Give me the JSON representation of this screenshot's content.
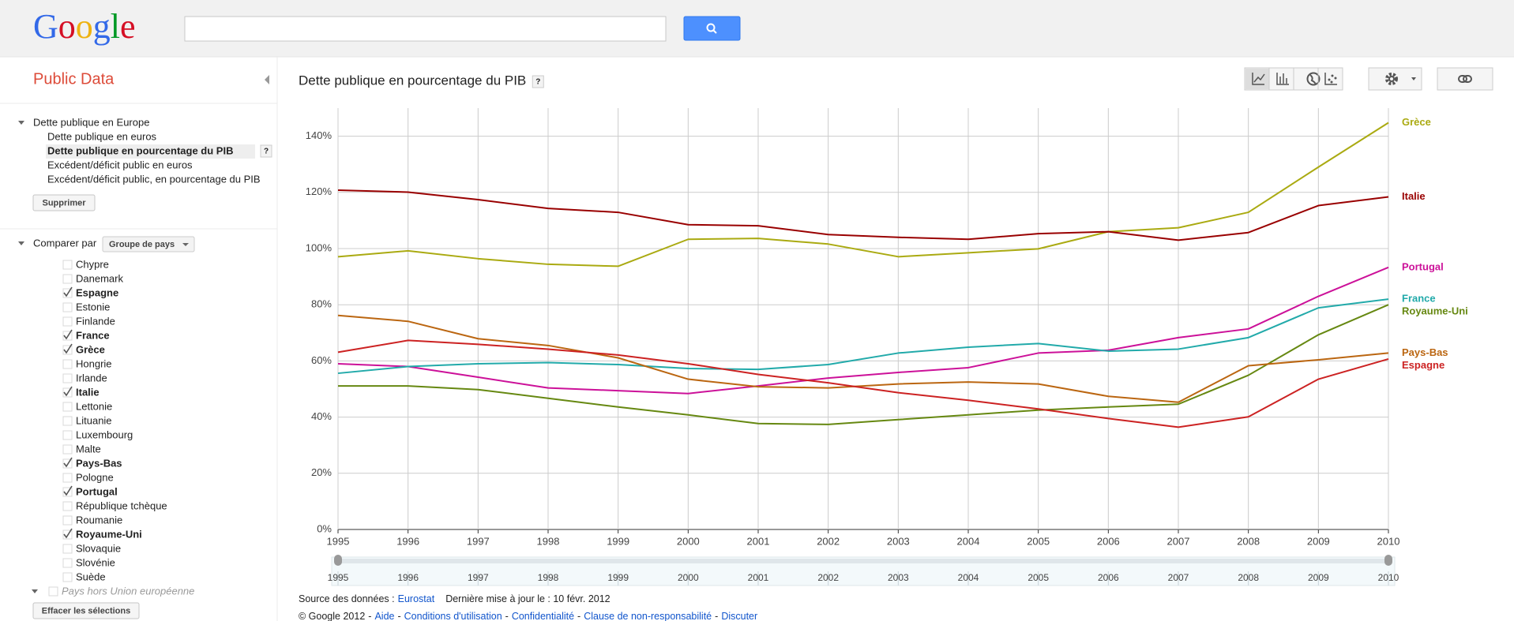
{
  "header": {
    "logo": [
      "G",
      "o",
      "o",
      "g",
      "l",
      "e"
    ]
  },
  "sidebar": {
    "title": "Public Data",
    "tree": {
      "label": "Dette publique en Europe",
      "items": [
        "Dette publique en euros",
        "Dette publique en pourcentage du PIB",
        "Excédent/déficit public en euros",
        "Excédent/déficit public, en pourcentage du PIB"
      ],
      "selected": 1,
      "help": "?"
    },
    "remove_button": "Supprimer",
    "compare_label": "Comparer par",
    "compare_dropdown": "Groupe de pays",
    "countries": [
      {
        "label": "Chypre",
        "checked": false
      },
      {
        "label": "Danemark",
        "checked": false
      },
      {
        "label": "Espagne",
        "checked": true
      },
      {
        "label": "Estonie",
        "checked": false
      },
      {
        "label": "Finlande",
        "checked": false
      },
      {
        "label": "France",
        "checked": true
      },
      {
        "label": "Grèce",
        "checked": true
      },
      {
        "label": "Hongrie",
        "checked": false
      },
      {
        "label": "Irlande",
        "checked": false
      },
      {
        "label": "Italie",
        "checked": true
      },
      {
        "label": "Lettonie",
        "checked": false
      },
      {
        "label": "Lituanie",
        "checked": false
      },
      {
        "label": "Luxembourg",
        "checked": false
      },
      {
        "label": "Malte",
        "checked": false
      },
      {
        "label": "Pays-Bas",
        "checked": true
      },
      {
        "label": "Pologne",
        "checked": false
      },
      {
        "label": "Portugal",
        "checked": true
      },
      {
        "label": "République tchèque",
        "checked": false
      },
      {
        "label": "Roumanie",
        "checked": false
      },
      {
        "label": "Royaume-Uni",
        "checked": true
      },
      {
        "label": "Slovaquie",
        "checked": false
      },
      {
        "label": "Slovénie",
        "checked": false
      },
      {
        "label": "Suède",
        "checked": false
      }
    ],
    "more_group": "Pays hors Union européenne",
    "clear_button": "Effacer les sélections"
  },
  "chart_data": {
    "type": "line",
    "title": "Dette publique en pourcentage du PIB",
    "help": "?",
    "x": [
      1995,
      1996,
      1997,
      1998,
      1999,
      2000,
      2001,
      2002,
      2003,
      2004,
      2005,
      2006,
      2007,
      2008,
      2009,
      2010
    ],
    "xlim": [
      1995,
      2010
    ],
    "xticks": [
      1995,
      1996,
      1997,
      1998,
      1999,
      2000,
      2001,
      2002,
      2003,
      2004,
      2005,
      2006,
      2007,
      2008,
      2009,
      2010
    ],
    "ylim": [
      0,
      150
    ],
    "yticks": [
      {
        "value": 0,
        "label": "0%"
      },
      {
        "value": 20,
        "label": "20%"
      },
      {
        "value": 40,
        "label": "40%"
      },
      {
        "value": 60,
        "label": "60%"
      },
      {
        "value": 80,
        "label": "80%"
      },
      {
        "value": 100,
        "label": "100%"
      },
      {
        "value": 120,
        "label": "120%"
      },
      {
        "value": 140,
        "label": "140%"
      }
    ],
    "grid": true,
    "series": [
      {
        "name": "Grèce",
        "color": "#aaaa11",
        "values": [
          97.1,
          99.2,
          96.4,
          94.4,
          93.7,
          103.3,
          103.6,
          101.6,
          97.1,
          98.5,
          99.9,
          106.0,
          107.4,
          112.9,
          129.0,
          144.8
        ]
      },
      {
        "name": "Italie",
        "color": "#990000",
        "values": [
          120.8,
          120.1,
          117.4,
          114.3,
          112.9,
          108.5,
          108.1,
          105.0,
          104.0,
          103.3,
          105.3,
          106.0,
          103.0,
          105.7,
          115.3,
          118.4
        ]
      },
      {
        "name": "Portugal",
        "color": "#cc1199",
        "values": [
          59.0,
          58.0,
          54.2,
          50.4,
          49.4,
          48.4,
          51.1,
          53.9,
          55.9,
          57.6,
          62.8,
          63.8,
          68.3,
          71.4,
          83.0,
          93.3
        ]
      },
      {
        "name": "France",
        "color": "#22aaaa",
        "values": [
          55.6,
          58.0,
          59.0,
          59.4,
          58.7,
          57.3,
          57.0,
          58.7,
          62.8,
          64.9,
          66.2,
          63.5,
          64.2,
          68.3,
          78.9,
          82.0
        ]
      },
      {
        "name": "Royaume-Uni",
        "color": "#668811",
        "values": [
          51.1,
          51.1,
          49.8,
          46.7,
          43.6,
          40.8,
          37.7,
          37.4,
          39.1,
          40.8,
          42.5,
          43.6,
          44.6,
          54.9,
          69.3,
          80.0
        ]
      },
      {
        "name": "Pays-Bas",
        "color": "#bb6611",
        "values": [
          76.2,
          74.1,
          67.9,
          65.5,
          61.1,
          53.5,
          50.8,
          50.4,
          51.8,
          52.5,
          51.8,
          47.4,
          45.3,
          58.3,
          60.4,
          62.8
        ]
      },
      {
        "name": "Espagne",
        "color": "#cc2222",
        "values": [
          63.1,
          67.3,
          65.9,
          64.2,
          62.1,
          59.0,
          55.2,
          52.2,
          48.7,
          46.0,
          42.9,
          39.5,
          36.4,
          40.1,
          53.5,
          60.7
        ]
      }
    ]
  },
  "footer": {
    "source_label": "Source des données :",
    "source_link": "Eurostat",
    "updated": "Dernière mise à jour le : 10 févr. 2012",
    "copyright": "© Google 2012",
    "separator": "-",
    "links": [
      "Aide",
      "Conditions d'utilisation",
      "Confidentialité",
      "Clause de non-responsabilité",
      "Discuter"
    ]
  }
}
